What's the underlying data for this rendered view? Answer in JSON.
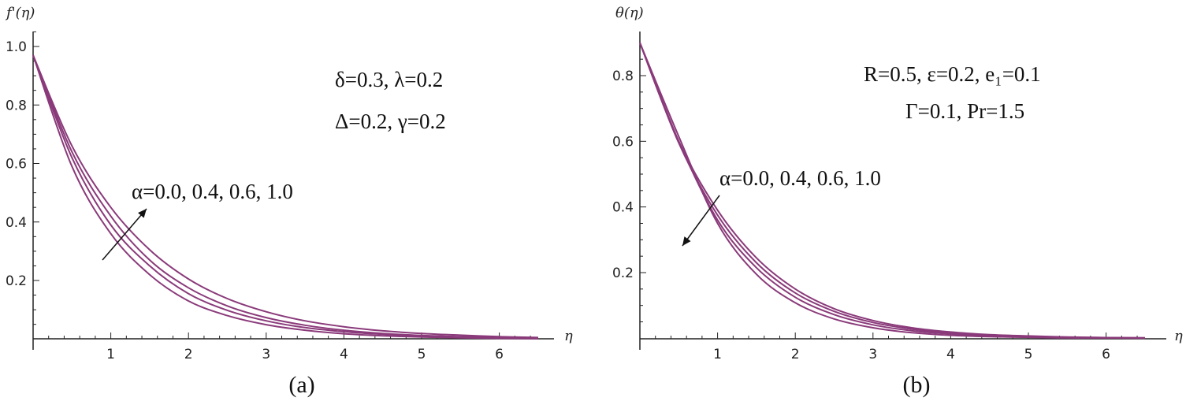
{
  "chart_data": [
    {
      "type": "line",
      "panel": "a",
      "caption": "(a)",
      "ylabel": "f'(η)",
      "xlabel": "η",
      "xlim": [
        0,
        6.5
      ],
      "ylim": [
        0,
        1.05
      ],
      "x_ticks": [
        "1",
        "2",
        "3",
        "4",
        "5",
        "6"
      ],
      "y_ticks": [
        "0.2",
        "0.4",
        "0.6",
        "0.8",
        "1.0"
      ],
      "x_tick_values": [
        1,
        2,
        3,
        4,
        5,
        6
      ],
      "y_tick_values": [
        0.2,
        0.4,
        0.6,
        0.8,
        1.0
      ],
      "line_color": "#8a3a7a",
      "annotations": [
        "δ=0.3, λ=0.2",
        "Δ=0.2, γ=0.2"
      ],
      "arrow_label": "α=0.0, 0.4, 0.6, 1.0",
      "arrow_direction": "increasing",
      "series": [
        {
          "x": [
            0,
            0.5,
            1,
            1.5,
            2,
            2.5,
            3,
            3.5,
            4,
            4.5,
            5,
            5.5,
            6,
            6.5
          ],
          "values": [
            0.97,
            0.59,
            0.36,
            0.22,
            0.13,
            0.08,
            0.049,
            0.03,
            0.018,
            0.011,
            0.007,
            0.004,
            0.002,
            0.001
          ]
        },
        {
          "x": [
            0,
            0.5,
            1,
            1.5,
            2,
            2.5,
            3,
            3.5,
            4,
            4.5,
            5,
            5.5,
            6,
            6.5
          ],
          "values": [
            0.97,
            0.62,
            0.39,
            0.25,
            0.155,
            0.098,
            0.062,
            0.039,
            0.025,
            0.016,
            0.01,
            0.006,
            0.004,
            0.002
          ]
        },
        {
          "x": [
            0,
            0.5,
            1,
            1.5,
            2,
            2.5,
            3,
            3.5,
            4,
            4.5,
            5,
            5.5,
            6,
            6.5
          ],
          "values": [
            0.97,
            0.64,
            0.42,
            0.27,
            0.175,
            0.113,
            0.073,
            0.047,
            0.03,
            0.019,
            0.012,
            0.008,
            0.005,
            0.003
          ]
        },
        {
          "x": [
            0,
            0.5,
            1,
            1.5,
            2,
            2.5,
            3,
            3.5,
            4,
            4.5,
            5,
            5.5,
            6,
            6.5
          ],
          "values": [
            0.97,
            0.66,
            0.45,
            0.305,
            0.205,
            0.138,
            0.093,
            0.062,
            0.042,
            0.028,
            0.019,
            0.013,
            0.008,
            0.005
          ]
        }
      ]
    },
    {
      "type": "line",
      "panel": "b",
      "caption": "(b)",
      "ylabel": "θ(η)",
      "xlabel": "η",
      "xlim": [
        0,
        6.5
      ],
      "ylim": [
        0,
        0.92
      ],
      "x_ticks": [
        "1",
        "2",
        "3",
        "4",
        "5",
        "6"
      ],
      "y_ticks": [
        "0.2",
        "0.4",
        "0.6",
        "0.8"
      ],
      "x_tick_values": [
        1,
        2,
        3,
        4,
        5,
        6
      ],
      "y_tick_values": [
        0.2,
        0.4,
        0.6,
        0.8
      ],
      "line_color": "#8a3a7a",
      "annotations": [
        "R=0.5, ε=0.2, e₁=0.1",
        "Γ=0.1, Pr=1.5"
      ],
      "arrow_label": "α=0.0, 0.4, 0.6, 1.0",
      "arrow_direction": "decreasing",
      "series": [
        {
          "x": [
            0,
            0.5,
            1,
            1.5,
            2,
            2.5,
            3,
            3.5,
            4,
            4.5,
            5,
            5.5,
            6,
            6.5
          ],
          "values": [
            0.9,
            0.6,
            0.39,
            0.245,
            0.15,
            0.09,
            0.054,
            0.032,
            0.019,
            0.011,
            0.007,
            0.004,
            0.002,
            0.001
          ]
        },
        {
          "x": [
            0,
            0.5,
            1,
            1.5,
            2,
            2.5,
            3,
            3.5,
            4,
            4.5,
            5,
            5.5,
            6,
            6.5
          ],
          "values": [
            0.9,
            0.595,
            0.375,
            0.23,
            0.138,
            0.082,
            0.048,
            0.028,
            0.016,
            0.009,
            0.005,
            0.003,
            0.002,
            0.001
          ]
        },
        {
          "x": [
            0,
            0.5,
            1,
            1.5,
            2,
            2.5,
            3,
            3.5,
            4,
            4.5,
            5,
            5.5,
            6,
            6.5
          ],
          "values": [
            0.9,
            0.6,
            0.36,
            0.215,
            0.125,
            0.072,
            0.041,
            0.023,
            0.013,
            0.007,
            0.004,
            0.002,
            0.001,
            0.001
          ]
        },
        {
          "x": [
            0,
            0.5,
            1,
            1.5,
            2,
            2.5,
            3,
            3.5,
            4,
            4.5,
            5,
            5.5,
            6,
            6.5
          ],
          "values": [
            0.9,
            0.615,
            0.35,
            0.195,
            0.108,
            0.059,
            0.032,
            0.017,
            0.009,
            0.005,
            0.003,
            0.001,
            0.001,
            0
          ]
        }
      ]
    }
  ]
}
